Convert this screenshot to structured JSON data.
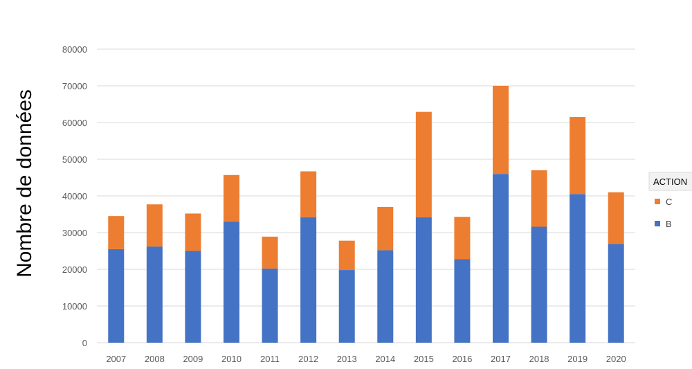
{
  "chart_data": {
    "type": "bar",
    "stacked": true,
    "categories": [
      "2007",
      "2008",
      "2009",
      "2010",
      "2011",
      "2012",
      "2013",
      "2014",
      "2015",
      "2016",
      "2017",
      "2018",
      "2019",
      "2020"
    ],
    "series": [
      {
        "name": "B",
        "color": "#4472C4",
        "values": [
          25500,
          26200,
          25000,
          33000,
          20200,
          34200,
          19800,
          25200,
          34200,
          22800,
          46000,
          31600,
          40500,
          26900
        ]
      },
      {
        "name": "C",
        "color": "#ED7D31",
        "values": [
          9000,
          11500,
          10200,
          12700,
          8700,
          12500,
          8000,
          11800,
          28700,
          11500,
          24000,
          15400,
          21000,
          14100
        ]
      }
    ],
    "ylabel": "Nombre de données",
    "xlabel": "",
    "ylim": [
      0,
      80000
    ],
    "yticks": [
      "0",
      "10000",
      "20000",
      "30000",
      "40000",
      "50000",
      "60000",
      "70000",
      "80000"
    ],
    "grid": true,
    "legend": {
      "title": "ACTION",
      "placement": "right",
      "entries": [
        "C",
        "B"
      ]
    }
  }
}
